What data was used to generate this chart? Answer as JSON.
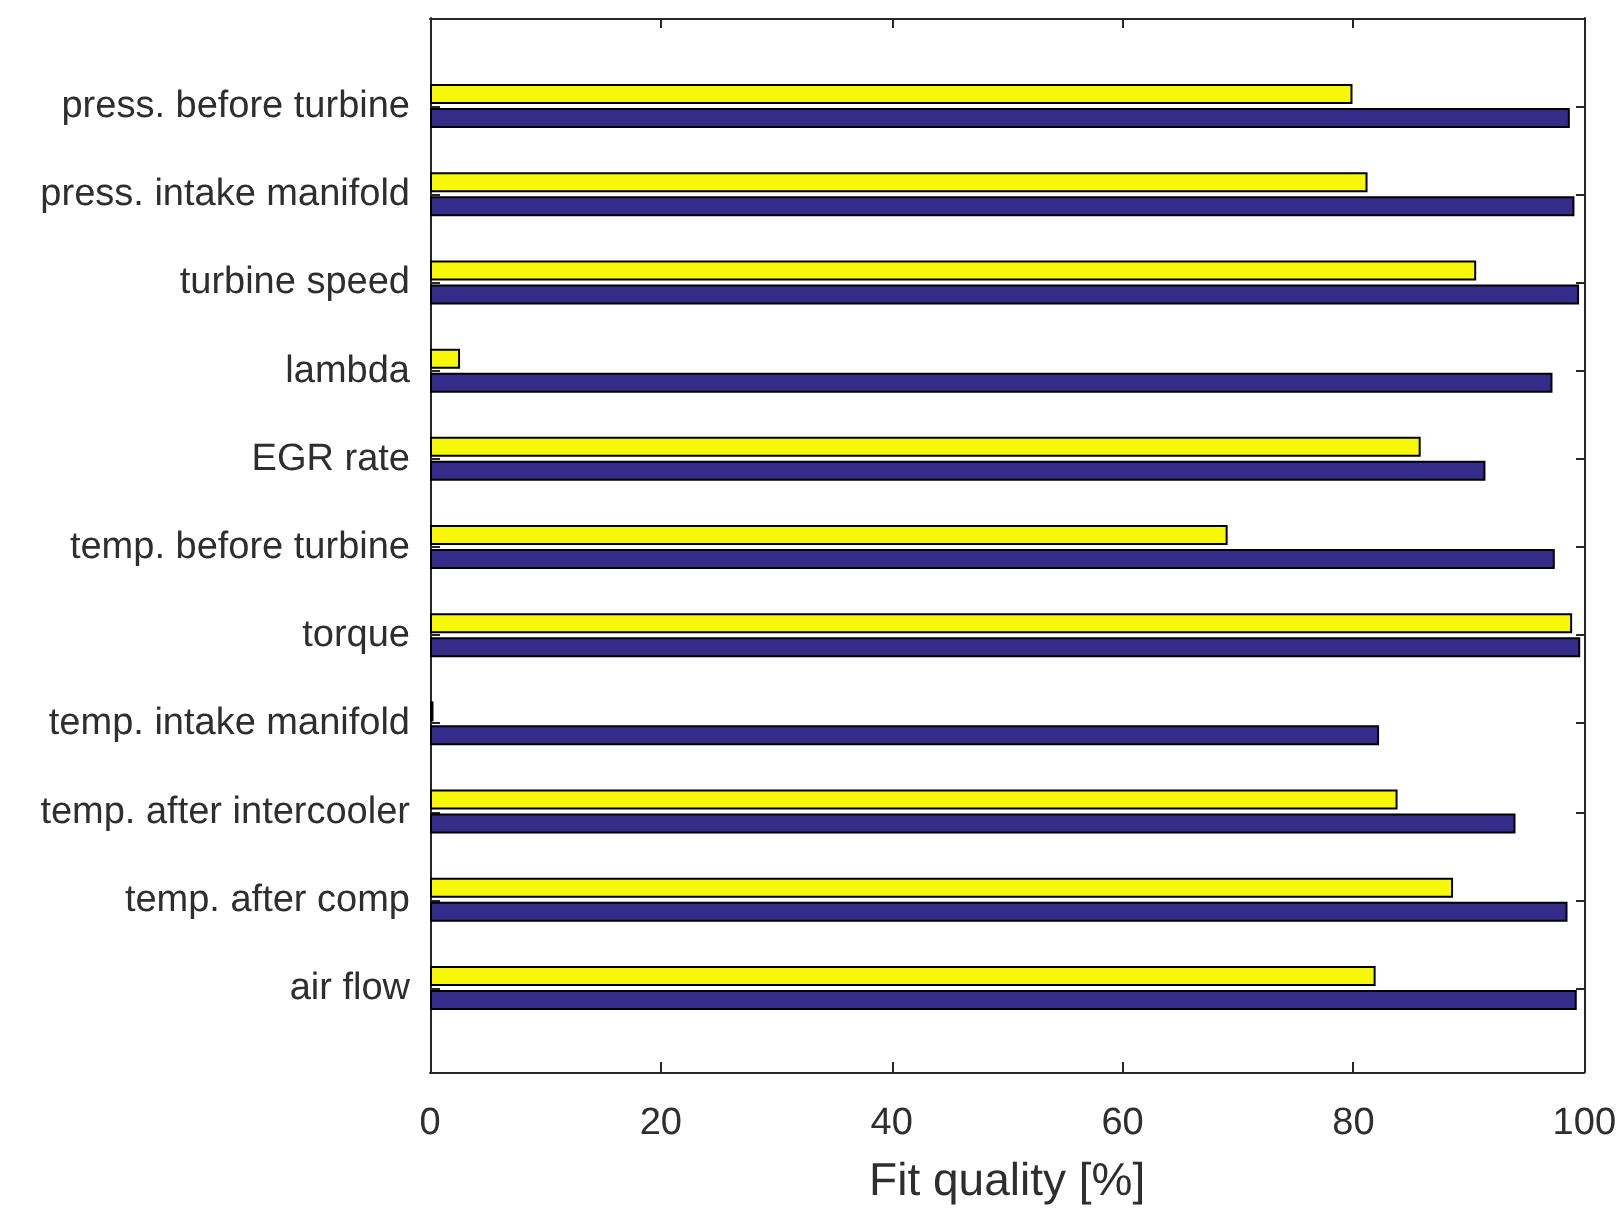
{
  "chart_data": {
    "type": "bar",
    "orientation": "horizontal",
    "xlabel": "Fit quality [%]",
    "categories": [
      "press. before turbine",
      "press. intake manifold",
      "turbine speed",
      "lambda",
      "EGR rate",
      "temp. before turbine",
      "torque",
      "temp. intake manifold",
      "temp. after intercooler",
      "temp. after comp",
      "air flow"
    ],
    "series": [
      {
        "color": "#f7f70a",
        "values": [
          79.8,
          81.1,
          90.5,
          2.6,
          85.7,
          69.0,
          98.8,
          0.3,
          83.7,
          88.5,
          81.8
        ]
      },
      {
        "color": "#342c88",
        "values": [
          98.6,
          99.0,
          99.4,
          97.1,
          91.3,
          97.3,
          99.5,
          82.1,
          93.9,
          98.4,
          99.2
        ]
      }
    ],
    "xlim": [
      0,
      100
    ],
    "xticks": [
      0,
      20,
      40,
      60,
      80,
      100
    ]
  }
}
